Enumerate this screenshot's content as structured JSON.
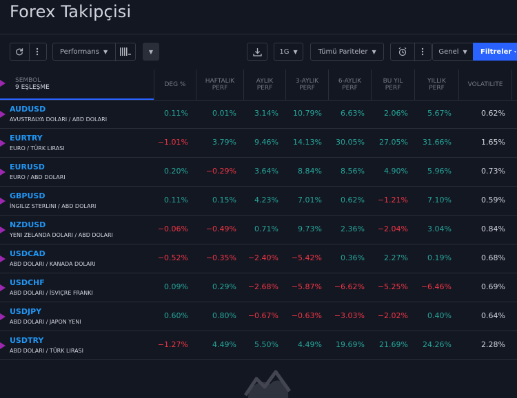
{
  "title": "Forex Takipçisi",
  "toolbar": {
    "performance_label": "Performans",
    "interval_label": "1G",
    "pairs_label": "Tümü Pariteler",
    "general_label": "Genel",
    "filters_label": "Filtreler"
  },
  "columns": {
    "symbol": "SEMBOL",
    "match_count": "9 EŞLEŞME",
    "change": "DEG %",
    "weekly_1": "HAFTALIK",
    "weekly_2": "PERF",
    "monthly_1": "AYLIK",
    "monthly_2": "PERF",
    "threem_1": "3-AYLIK",
    "threem_2": "PERF",
    "sixm_1": "6-AYLIK",
    "sixm_2": "PERF",
    "ytd_1": "BU YIL",
    "ytd_2": "PERF",
    "yearly_1": "YILLIK",
    "yearly_2": "PERF",
    "volatility": "VOLATILITE"
  },
  "rows": [
    {
      "symbol": "AUDUSD",
      "desc": "AVUSTRALYA DOLARI / ABD DOLARI",
      "chg": "0.11%",
      "w": "0.01%",
      "m": "3.14%",
      "q": "10.79%",
      "h": "6.63%",
      "ytd": "2.06%",
      "y": "5.67%",
      "vol": "0.62%"
    },
    {
      "symbol": "EURTRY",
      "desc": "EURO / TÜRK LIRASI",
      "chg": "−1.01%",
      "w": "3.79%",
      "m": "9.46%",
      "q": "14.13%",
      "h": "30.05%",
      "ytd": "27.05%",
      "y": "31.66%",
      "vol": "1.65%"
    },
    {
      "symbol": "EURUSD",
      "desc": "EURO / ABD DOLARI",
      "chg": "0.20%",
      "w": "−0.29%",
      "m": "3.64%",
      "q": "8.84%",
      "h": "8.56%",
      "ytd": "4.90%",
      "y": "5.96%",
      "vol": "0.73%"
    },
    {
      "symbol": "GBPUSD",
      "desc": "İNGILIZ STERLINI / ABD DOLARI",
      "chg": "0.11%",
      "w": "0.15%",
      "m": "4.23%",
      "q": "7.01%",
      "h": "0.62%",
      "ytd": "−1.21%",
      "y": "7.10%",
      "vol": "0.59%"
    },
    {
      "symbol": "NZDUSD",
      "desc": "YENI ZELANDA DOLARI / ABD DOLARI",
      "chg": "−0.06%",
      "w": "−0.49%",
      "m": "0.71%",
      "q": "9.73%",
      "h": "2.36%",
      "ytd": "−2.04%",
      "y": "3.04%",
      "vol": "0.84%"
    },
    {
      "symbol": "USDCAD",
      "desc": "ABD DOLARI / KANADA DOLARI",
      "chg": "−0.52%",
      "w": "−0.35%",
      "m": "−2.40%",
      "q": "−5.42%",
      "h": "0.36%",
      "ytd": "2.27%",
      "y": "0.19%",
      "vol": "0.68%"
    },
    {
      "symbol": "USDCHF",
      "desc": "ABD DOLARI / İSVIÇRE FRANKI",
      "chg": "0.09%",
      "w": "0.29%",
      "m": "−2.68%",
      "q": "−5.87%",
      "h": "−6.62%",
      "ytd": "−5.25%",
      "y": "−6.46%",
      "vol": "0.69%"
    },
    {
      "symbol": "USDJPY",
      "desc": "ABD DOLARI / JAPON YENI",
      "chg": "0.60%",
      "w": "0.80%",
      "m": "−0.67%",
      "q": "−0.63%",
      "h": "−3.03%",
      "ytd": "−2.02%",
      "y": "0.40%",
      "vol": "0.64%"
    },
    {
      "symbol": "USDTRY",
      "desc": "ABD DOLARI / TÜRK LIRASI",
      "chg": "−1.27%",
      "w": "4.49%",
      "m": "5.50%",
      "q": "4.49%",
      "h": "19.69%",
      "ytd": "21.69%",
      "y": "24.26%",
      "vol": "2.28%"
    }
  ],
  "colors": {
    "positive": "#26a69a",
    "negative": "#f23645",
    "accent": "#2962ff",
    "symbol": "#2196f3",
    "flag": "#9c27b0"
  }
}
